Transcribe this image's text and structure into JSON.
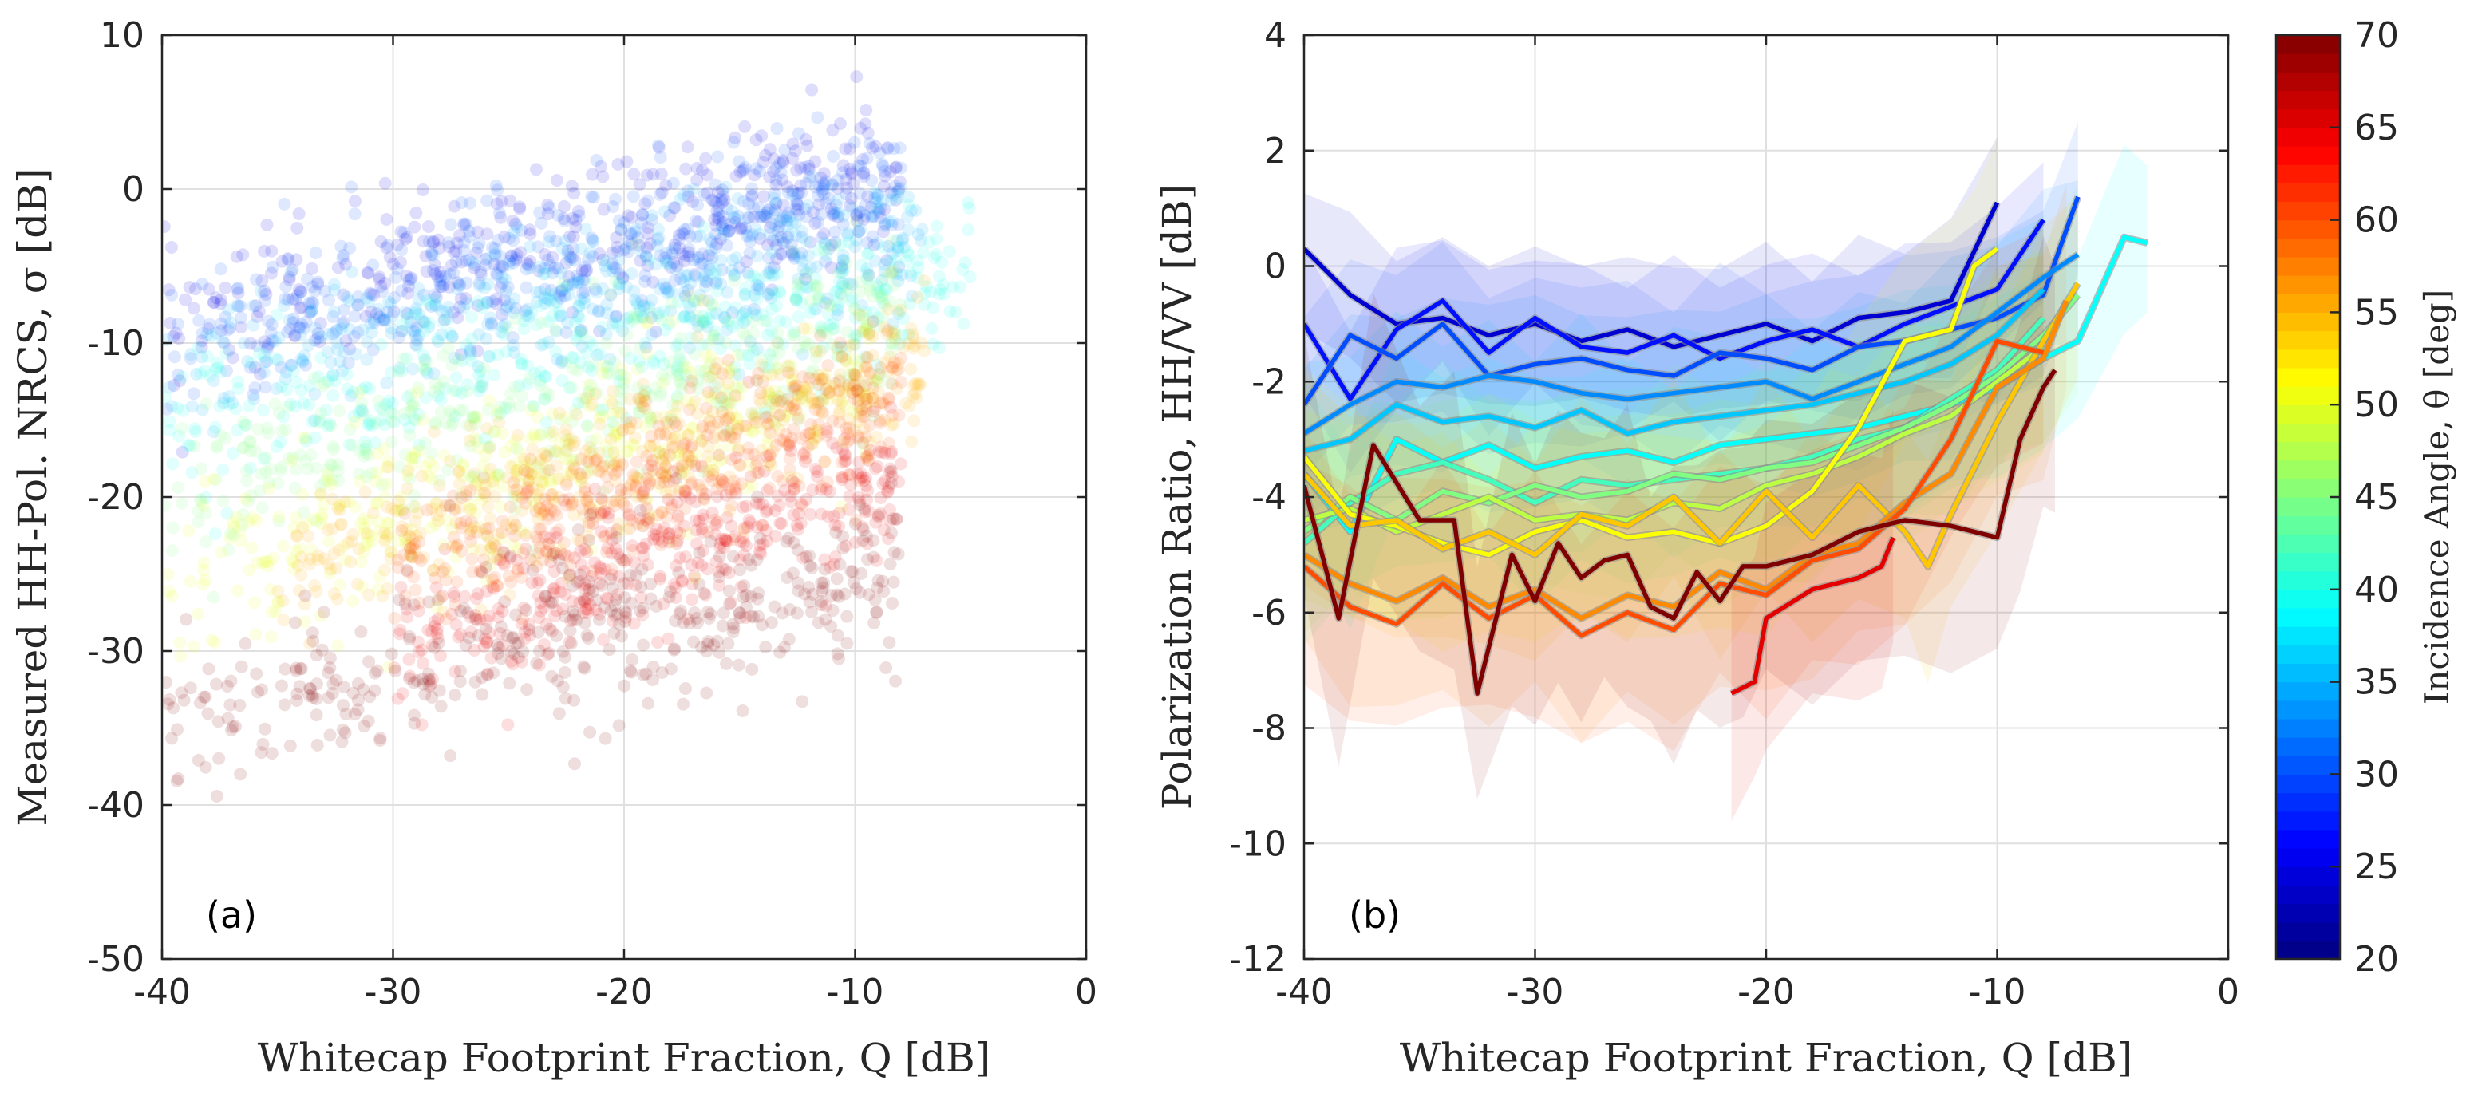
{
  "colors": {
    "axis": "#262626",
    "grid": "#e0e0e0",
    "background": "#ffffff"
  },
  "chart_data": [
    {
      "type": "scatter",
      "panel_label": "(a)",
      "xlabel": "Whitecap Footprint Fraction, Q [dB]",
      "ylabel": "Measured HH-Pol. NRCS, σ [dB]",
      "xlim": [
        -40,
        0
      ],
      "ylim": [
        -50,
        10
      ],
      "xticks": [
        -40,
        -30,
        -20,
        -10,
        0
      ],
      "yticks": [
        -50,
        -40,
        -30,
        -20,
        -10,
        0,
        10
      ],
      "xtick_labels": [
        "-40",
        "-30",
        "-20",
        "-10",
        "0"
      ],
      "ytick_labels": [
        "-50",
        "-40",
        "-30",
        "-20",
        "-10",
        "0",
        "10"
      ],
      "grid": true,
      "color_variable": "Incidence Angle, θ [deg]",
      "clusters": [
        {
          "theta": 25,
          "q_range": [
            -40,
            -8
          ],
          "sigma_at_q_min": -9,
          "sigma_at_q_max": 1,
          "spread": 4
        },
        {
          "theta": 30,
          "q_range": [
            -40,
            -8
          ],
          "sigma_at_q_min": -10,
          "sigma_at_q_max": 0,
          "spread": 4
        },
        {
          "theta": 35,
          "q_range": [
            -40,
            -7
          ],
          "sigma_at_q_min": -12,
          "sigma_at_q_max": -3,
          "spread": 4
        },
        {
          "theta": 40,
          "q_range": [
            -40,
            -5
          ],
          "sigma_at_q_min": -15,
          "sigma_at_q_max": -6,
          "spread": 4
        },
        {
          "theta": 45,
          "q_range": [
            -40,
            -8
          ],
          "sigma_at_q_min": -20,
          "sigma_at_q_max": -9,
          "spread": 5
        },
        {
          "theta": 50,
          "q_range": [
            -40,
            -9
          ],
          "sigma_at_q_min": -25,
          "sigma_at_q_max": -12,
          "spread": 5
        },
        {
          "theta": 55,
          "q_range": [
            -35,
            -7
          ],
          "sigma_at_q_min": -25,
          "sigma_at_q_max": -11,
          "spread": 4
        },
        {
          "theta": 60,
          "q_range": [
            -30,
            -8
          ],
          "sigma_at_q_min": -25,
          "sigma_at_q_max": -13,
          "spread": 4
        },
        {
          "theta": 65,
          "q_range": [
            -30,
            -8
          ],
          "sigma_at_q_min": -30,
          "sigma_at_q_max": -18,
          "spread": 4
        },
        {
          "theta": 70,
          "q_range": [
            -40,
            -8
          ],
          "sigma_at_q_min": -34,
          "sigma_at_q_max": -25,
          "spread": 5
        }
      ]
    },
    {
      "type": "line",
      "panel_label": "(b)",
      "xlabel": "Whitecap Footprint Fraction, Q [dB]",
      "ylabel": "Polarization Ratio, HH/VV [dB]",
      "xlim": [
        -40,
        0
      ],
      "ylim": [
        -12,
        4
      ],
      "xticks": [
        -40,
        -30,
        -20,
        -10,
        0
      ],
      "yticks": [
        -12,
        -10,
        -8,
        -6,
        -4,
        -2,
        0,
        2,
        4
      ],
      "xtick_labels": [
        "-40",
        "-30",
        "-20",
        "-10",
        "0"
      ],
      "ytick_labels": [
        "-12",
        "-10",
        "-8",
        "-6",
        "-4",
        "-2",
        "0",
        "2",
        "4"
      ],
      "grid": true,
      "shaded_band": "±1 std",
      "series": [
        {
          "name": "theta 24",
          "theta": 24,
          "x": [
            -40,
            -38,
            -36,
            -34,
            -32,
            -30,
            -28,
            -26,
            -24,
            -22,
            -20,
            -18,
            -16,
            -14,
            -12,
            -10
          ],
          "y": [
            0.3,
            -0.5,
            -1.0,
            -0.9,
            -1.2,
            -1.0,
            -1.3,
            -1.1,
            -1.4,
            -1.2,
            -1.0,
            -1.3,
            -0.9,
            -0.8,
            -0.6,
            1.1
          ],
          "std": 1.2
        },
        {
          "name": "theta 27",
          "theta": 27,
          "x": [
            -40,
            -38,
            -36,
            -34,
            -32,
            -30,
            -28,
            -26,
            -24,
            -22,
            -20,
            -18,
            -16,
            -14,
            -12,
            -10,
            -8
          ],
          "y": [
            -1.0,
            -2.3,
            -1.1,
            -0.6,
            -1.5,
            -0.9,
            -1.4,
            -1.5,
            -1.2,
            -1.6,
            -1.3,
            -1.1,
            -1.4,
            -1.0,
            -0.7,
            -0.4,
            0.8
          ],
          "std": 1.2
        },
        {
          "name": "theta 30",
          "theta": 30,
          "x": [
            -40,
            -38,
            -36,
            -34,
            -32,
            -30,
            -28,
            -26,
            -24,
            -22,
            -20,
            -18,
            -16,
            -14,
            -12,
            -10,
            -8,
            -6.5
          ],
          "y": [
            -2.4,
            -1.2,
            -1.6,
            -1.0,
            -1.9,
            -1.7,
            -1.6,
            -1.8,
            -1.9,
            -1.5,
            -1.6,
            -1.8,
            -1.4,
            -1.3,
            -1.1,
            -0.9,
            -0.5,
            1.2
          ],
          "std": 1.3
        },
        {
          "name": "theta 33",
          "theta": 33,
          "x": [
            -40,
            -38,
            -36,
            -34,
            -32,
            -30,
            -28,
            -26,
            -24,
            -22,
            -20,
            -18,
            -16,
            -14,
            -12,
            -10,
            -8,
            -6.5
          ],
          "y": [
            -2.9,
            -2.4,
            -2.0,
            -2.1,
            -1.9,
            -2.0,
            -2.2,
            -2.3,
            -2.2,
            -2.1,
            -2.0,
            -2.3,
            -2.0,
            -1.7,
            -1.4,
            -0.8,
            -0.2,
            0.2
          ],
          "std": 1.3
        },
        {
          "name": "theta 36",
          "theta": 36,
          "x": [
            -40,
            -38,
            -36,
            -34,
            -32,
            -30,
            -28,
            -26,
            -24,
            -22,
            -20,
            -18,
            -16,
            -14,
            -12,
            -10,
            -8
          ],
          "y": [
            -3.2,
            -3.0,
            -2.4,
            -2.7,
            -2.6,
            -2.8,
            -2.5,
            -2.9,
            -2.7,
            -2.6,
            -2.5,
            -2.4,
            -2.2,
            -2.0,
            -1.7,
            -1.2,
            -0.4
          ],
          "std": 1.4
        },
        {
          "name": "theta 39",
          "theta": 39,
          "x": [
            -40,
            -38,
            -36,
            -34,
            -32,
            -30,
            -28,
            -26,
            -24,
            -22,
            -20,
            -18,
            -16,
            -14,
            -12,
            -10,
            -8,
            -6.5,
            -4.5,
            -3.5
          ],
          "y": [
            -3.6,
            -4.6,
            -3.0,
            -3.4,
            -3.1,
            -3.5,
            -3.3,
            -3.2,
            -3.4,
            -3.1,
            -3.0,
            -2.9,
            -2.8,
            -2.6,
            -2.4,
            -2.1,
            -1.6,
            -1.3,
            0.5,
            0.4
          ],
          "std": 1.4
        },
        {
          "name": "theta 42",
          "theta": 42,
          "x": [
            -40,
            -38,
            -36,
            -34,
            -32,
            -30,
            -28,
            -26,
            -24,
            -22,
            -20,
            -18,
            -16,
            -14,
            -12,
            -10,
            -8
          ],
          "y": [
            -4.8,
            -4.1,
            -3.6,
            -3.4,
            -3.7,
            -4.1,
            -3.7,
            -3.8,
            -3.7,
            -3.6,
            -3.5,
            -3.3,
            -3.0,
            -2.8,
            -2.3,
            -1.8,
            -0.9
          ],
          "std": 1.5
        },
        {
          "name": "theta 45",
          "theta": 45,
          "x": [
            -40,
            -38,
            -36,
            -34,
            -32,
            -30,
            -28,
            -26,
            -24,
            -22,
            -20,
            -18,
            -16,
            -14,
            -12,
            -10,
            -8,
            -6.5
          ],
          "y": [
            -4.6,
            -4.0,
            -4.4,
            -3.9,
            -4.1,
            -3.8,
            -4.0,
            -3.9,
            -3.6,
            -3.7,
            -3.5,
            -3.4,
            -3.1,
            -2.8,
            -2.4,
            -1.9,
            -1.2,
            -0.5
          ],
          "std": 1.6
        },
        {
          "name": "theta 48",
          "theta": 48,
          "x": [
            -40,
            -38,
            -36,
            -34,
            -32,
            -30,
            -28,
            -26,
            -24,
            -22,
            -20,
            -18,
            -16,
            -14,
            -12,
            -10,
            -8
          ],
          "y": [
            -4.4,
            -4.2,
            -4.6,
            -4.3,
            -4.0,
            -4.4,
            -4.3,
            -4.4,
            -4.1,
            -4.2,
            -3.8,
            -3.6,
            -3.3,
            -2.9,
            -2.6,
            -2.0,
            -1.4
          ],
          "std": 1.6
        },
        {
          "name": "theta 51",
          "theta": 51,
          "x": [
            -40,
            -38,
            -36,
            -34,
            -32,
            -30,
            -28,
            -26,
            -24,
            -22,
            -20,
            -18,
            -16,
            -14,
            -12,
            -11,
            -10
          ],
          "y": [
            -3.3,
            -4.3,
            -4.5,
            -4.8,
            -5.0,
            -4.6,
            -4.4,
            -4.7,
            -4.6,
            -4.8,
            -4.5,
            -3.9,
            -2.8,
            -1.3,
            -1.1,
            0.0,
            0.3
          ],
          "std": 1.6
        },
        {
          "name": "theta 54",
          "theta": 54,
          "x": [
            -40,
            -38,
            -36,
            -34,
            -32,
            -30,
            -28,
            -26,
            -24,
            -22,
            -20,
            -18,
            -16,
            -14,
            -13,
            -12,
            -10,
            -8,
            -6.5
          ],
          "y": [
            -3.6,
            -4.5,
            -4.4,
            -4.9,
            -4.6,
            -5.0,
            -4.3,
            -4.5,
            -4.0,
            -4.8,
            -3.9,
            -4.7,
            -3.8,
            -4.6,
            -5.2,
            -4.3,
            -2.7,
            -1.3,
            -0.3
          ],
          "std": 1.7
        },
        {
          "name": "theta 57",
          "theta": 57,
          "x": [
            -40,
            -38,
            -36,
            -34,
            -32,
            -30,
            -28,
            -26,
            -24,
            -22,
            -20,
            -18,
            -16,
            -14,
            -12,
            -10,
            -8,
            -7
          ],
          "y": [
            -5.0,
            -5.5,
            -5.8,
            -5.4,
            -5.9,
            -5.6,
            -6.1,
            -5.7,
            -5.9,
            -5.3,
            -5.6,
            -5.0,
            -4.8,
            -4.1,
            -3.6,
            -2.1,
            -1.6,
            -0.6
          ],
          "std": 1.8
        },
        {
          "name": "theta 60",
          "theta": 60,
          "x": [
            -40,
            -38,
            -36,
            -34,
            -32,
            -30,
            -28,
            -26,
            -24,
            -22,
            -20,
            -18,
            -16,
            -14,
            -12,
            -10,
            -8
          ],
          "y": [
            -5.2,
            -5.9,
            -6.2,
            -5.5,
            -6.1,
            -5.7,
            -6.4,
            -6.0,
            -6.3,
            -5.5,
            -5.7,
            -5.1,
            -4.9,
            -4.2,
            -3.0,
            -1.3,
            -1.5
          ],
          "std": 1.8
        },
        {
          "name": "theta 65",
          "theta": 65,
          "x": [
            -21.5,
            -20.5,
            -20,
            -18,
            -16,
            -15,
            -14.5
          ],
          "y": [
            -7.4,
            -7.2,
            -6.1,
            -5.6,
            -5.4,
            -5.2,
            -4.7
          ],
          "std": 1.9
        },
        {
          "name": "theta 70",
          "theta": 70,
          "x": [
            -40,
            -38.5,
            -37,
            -35,
            -33.5,
            -32.5,
            -31,
            -30,
            -29,
            -28,
            -27,
            -26,
            -25,
            -24,
            -23,
            -22,
            -21,
            -20,
            -18,
            -16,
            -14,
            -12,
            -10,
            -9,
            -8,
            -7.5
          ],
          "y": [
            -3.8,
            -6.1,
            -3.1,
            -4.4,
            -4.4,
            -7.4,
            -5.0,
            -5.8,
            -4.8,
            -5.4,
            -5.1,
            -5.0,
            -5.9,
            -6.1,
            -5.3,
            -5.8,
            -5.2,
            -5.2,
            -5.0,
            -4.6,
            -4.4,
            -4.5,
            -4.7,
            -3.0,
            -2.1,
            -1.8
          ],
          "std": 2.2
        }
      ]
    }
  ],
  "colorbar": {
    "label": "Incidence Angle, θ [deg]",
    "min": 20,
    "max": 70,
    "ticks": [
      20,
      25,
      30,
      35,
      40,
      45,
      50,
      55,
      60,
      65,
      70
    ],
    "tick_labels": [
      "20",
      "25",
      "30",
      "35",
      "40",
      "45",
      "50",
      "55",
      "60",
      "65",
      "70"
    ],
    "colormap": "jet",
    "n_levels": 50
  }
}
